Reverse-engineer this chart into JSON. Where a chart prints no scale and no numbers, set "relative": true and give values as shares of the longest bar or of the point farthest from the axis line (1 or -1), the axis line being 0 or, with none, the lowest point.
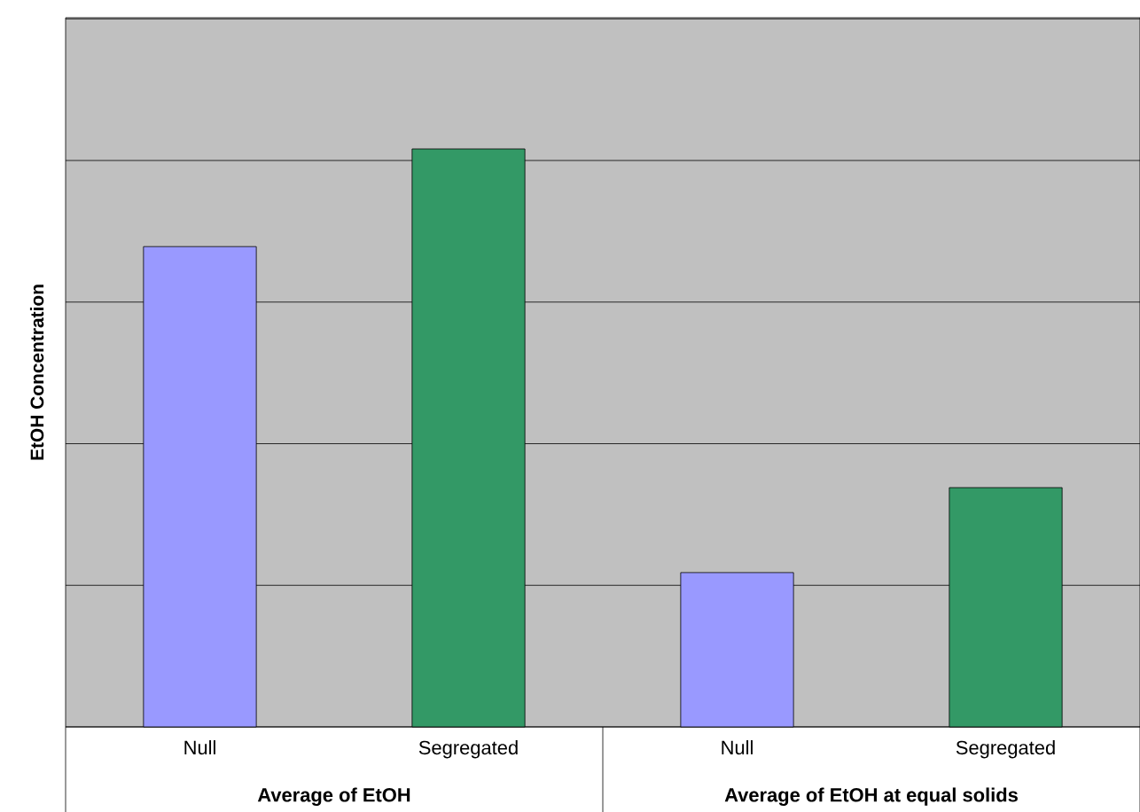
{
  "chart_data": {
    "type": "bar",
    "ylabel": "EtOH Concentration",
    "categories": [
      "Null",
      "Segregated",
      "Null",
      "Segregated"
    ],
    "values": [
      0.831,
      1,
      0.267,
      0.414
    ],
    "colors": [
      "#9999ff",
      "#339966",
      "#9999ff",
      "#339966"
    ],
    "relative": true,
    "grid": "y",
    "tick_labels": "x",
    "annotations": [
      "Average of EtOH",
      "Average of EtOH at equal solids"
    ]
  }
}
